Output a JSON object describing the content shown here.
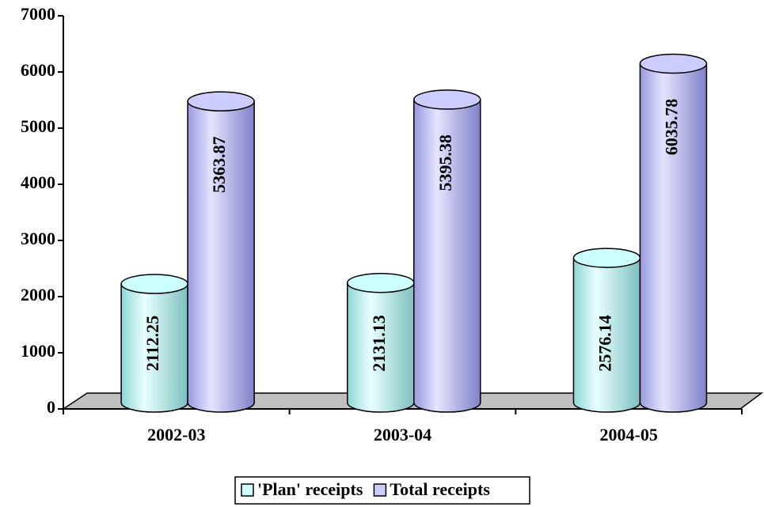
{
  "chart_data": {
    "type": "cylinder-bar",
    "categories": [
      "2002-03",
      "2003-04",
      "2004-05"
    ],
    "series": [
      {
        "name": "'Plan' receipts",
        "color": "#ccffff",
        "values": [
          2112.25,
          2131.13,
          2576.14
        ]
      },
      {
        "name": "Total receipts",
        "color": "#ccccff",
        "values": [
          5363.87,
          5395.38,
          6035.78
        ]
      }
    ],
    "ylim": [
      0,
      7000
    ],
    "yticks": [
      0,
      1000,
      2000,
      3000,
      4000,
      5000,
      6000,
      7000
    ]
  }
}
